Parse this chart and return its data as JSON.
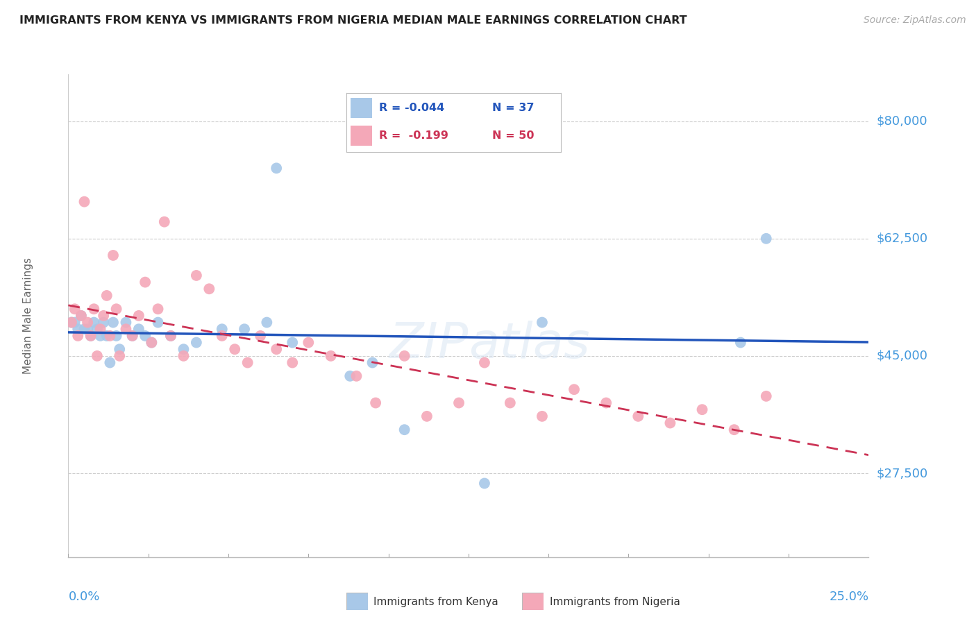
{
  "title": "IMMIGRANTS FROM KENYA VS IMMIGRANTS FROM NIGERIA MEDIAN MALE EARNINGS CORRELATION CHART",
  "source": "Source: ZipAtlas.com",
  "ylabel": "Median Male Earnings",
  "yticks": [
    27500,
    45000,
    62500,
    80000
  ],
  "ytick_labels": [
    "$27,500",
    "$45,000",
    "$62,500",
    "$80,000"
  ],
  "xmin": 0.0,
  "xmax": 0.25,
  "ymin": 15000,
  "ymax": 87000,
  "kenya_R": "-0.044",
  "kenya_N": "37",
  "nigeria_R": "-0.199",
  "nigeria_N": "50",
  "kenya_color": "#a8c8e8",
  "nigeria_color": "#f4a8b8",
  "kenya_line_color": "#2255bb",
  "nigeria_line_color": "#cc3355",
  "axis_label_color": "#4499dd",
  "legend_label_kenya": "Immigrants from Kenya",
  "legend_label_nigeria": "Immigrants from Nigeria",
  "kenya_points_x": [
    0.001,
    0.002,
    0.003,
    0.004,
    0.005,
    0.006,
    0.007,
    0.008,
    0.009,
    0.01,
    0.011,
    0.012,
    0.013,
    0.014,
    0.015,
    0.016,
    0.018,
    0.02,
    0.022,
    0.024,
    0.026,
    0.028,
    0.032,
    0.036,
    0.04,
    0.048,
    0.055,
    0.062,
    0.065,
    0.07,
    0.088,
    0.095,
    0.105,
    0.13,
    0.148,
    0.21,
    0.218
  ],
  "kenya_points_y": [
    50000,
    50000,
    49000,
    51000,
    49000,
    49000,
    48000,
    50000,
    49000,
    48000,
    50000,
    48000,
    44000,
    50000,
    48000,
    46000,
    50000,
    48000,
    49000,
    48000,
    47000,
    50000,
    48000,
    46000,
    47000,
    49000,
    49000,
    50000,
    73000,
    47000,
    42000,
    44000,
    34000,
    26000,
    50000,
    47000,
    62500
  ],
  "nigeria_points_x": [
    0.001,
    0.002,
    0.003,
    0.004,
    0.005,
    0.006,
    0.007,
    0.008,
    0.009,
    0.01,
    0.011,
    0.012,
    0.013,
    0.014,
    0.015,
    0.016,
    0.018,
    0.02,
    0.022,
    0.024,
    0.026,
    0.028,
    0.03,
    0.032,
    0.036,
    0.04,
    0.044,
    0.048,
    0.052,
    0.056,
    0.06,
    0.065,
    0.07,
    0.075,
    0.082,
    0.09,
    0.096,
    0.105,
    0.112,
    0.122,
    0.13,
    0.138,
    0.148,
    0.158,
    0.168,
    0.178,
    0.188,
    0.198,
    0.208,
    0.218
  ],
  "nigeria_points_y": [
    50000,
    52000,
    48000,
    51000,
    68000,
    50000,
    48000,
    52000,
    45000,
    49000,
    51000,
    54000,
    48000,
    60000,
    52000,
    45000,
    49000,
    48000,
    51000,
    56000,
    47000,
    52000,
    65000,
    48000,
    45000,
    57000,
    55000,
    48000,
    46000,
    44000,
    48000,
    46000,
    44000,
    47000,
    45000,
    42000,
    38000,
    45000,
    36000,
    38000,
    44000,
    38000,
    36000,
    40000,
    38000,
    36000,
    35000,
    37000,
    34000,
    39000
  ]
}
